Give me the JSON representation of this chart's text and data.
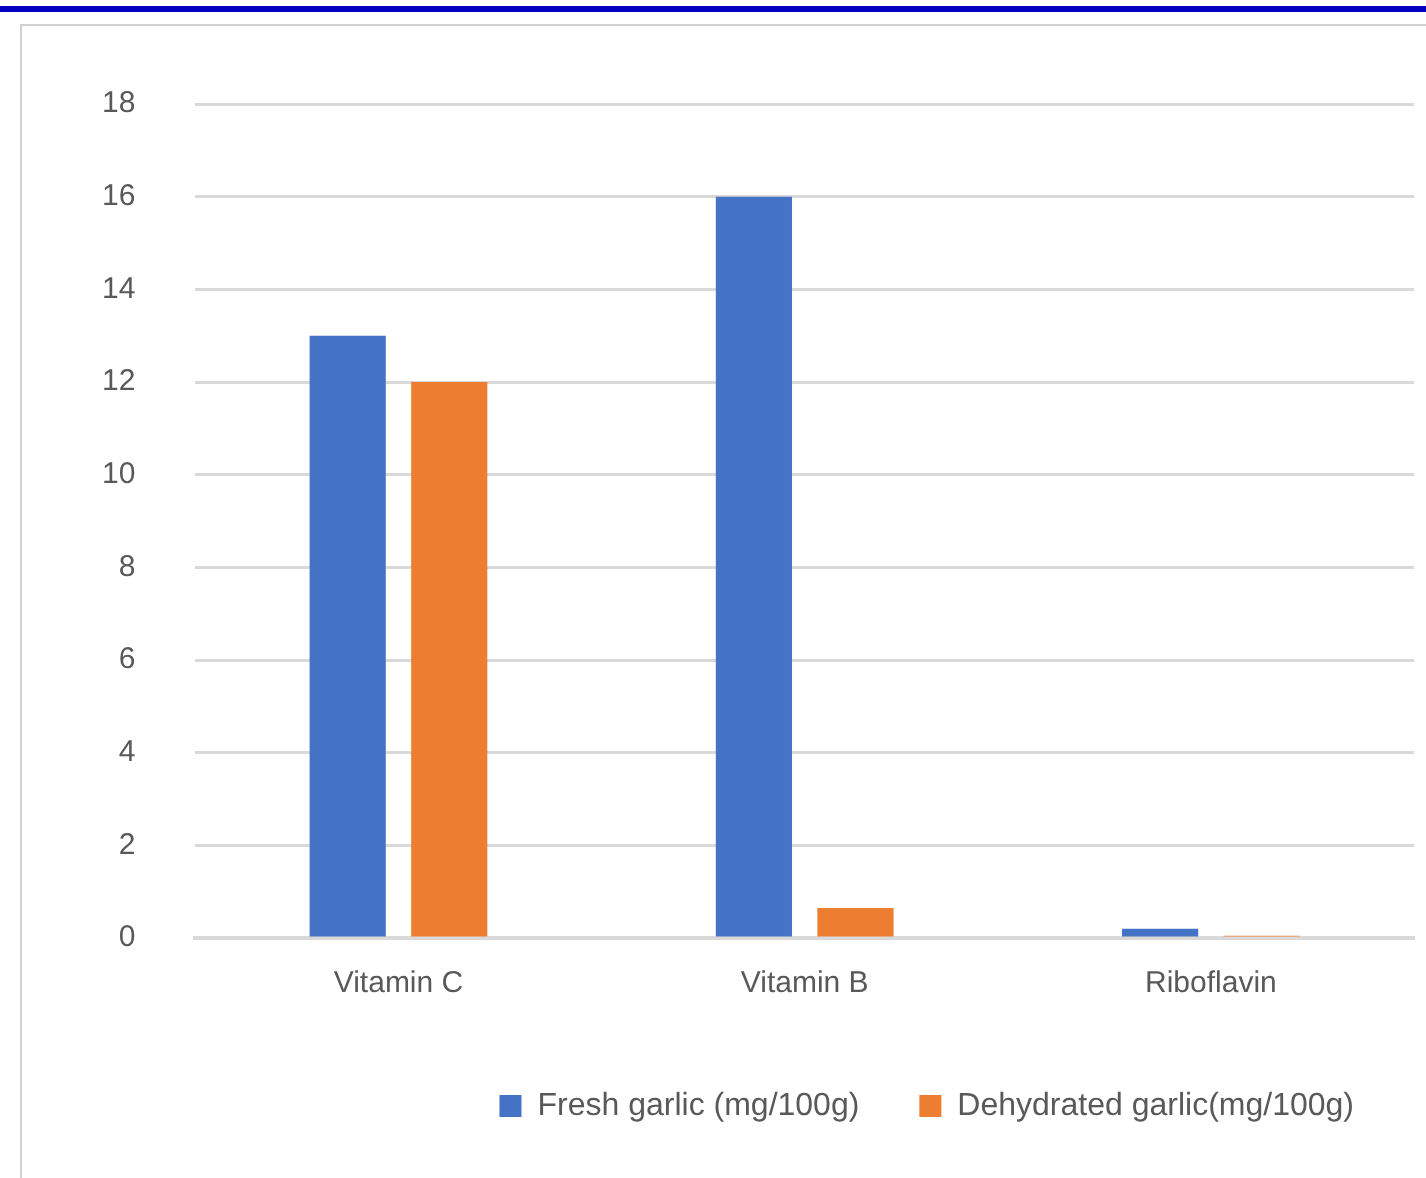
{
  "chart_data": {
    "type": "bar",
    "categories": [
      "Vitamin C",
      "Vitamin B",
      "Riboflavin"
    ],
    "series": [
      {
        "name": "Fresh garlic (mg/100g)",
        "color": "#4472c4",
        "values": [
          13,
          16,
          0.2
        ]
      },
      {
        "name": "Dehydrated garlic(mg/100g)",
        "color": "#ed7d31",
        "values": [
          12,
          0.65,
          0.05
        ]
      }
    ],
    "ylim": [
      0,
      18
    ],
    "yticks": [
      0,
      2,
      4,
      6,
      8,
      10,
      12,
      14,
      16,
      18
    ],
    "grid": "y",
    "legend": "bottom"
  }
}
